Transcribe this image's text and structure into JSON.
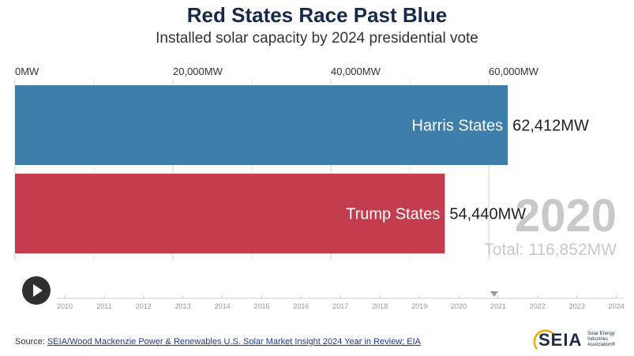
{
  "chart_data": {
    "type": "bar",
    "orientation": "horizontal",
    "title": "Red States Race Past Blue",
    "subtitle": "Installed solar capacity by 2024 presidential vote",
    "categories": [
      "Harris States",
      "Trump States"
    ],
    "values": [
      62412,
      54440
    ],
    "value_labels": [
      "62,412MW",
      "54,440MW"
    ],
    "colors": [
      "#3e7eaa",
      "#c43d4f"
    ],
    "xlim": [
      0,
      70000
    ],
    "x_ticks": [
      0,
      20000,
      40000,
      60000
    ],
    "x_tick_labels": [
      "0MW",
      "20,000MW",
      "40,000MW",
      "60,000MW"
    ],
    "grid": true,
    "current_year": "2020",
    "total_label": "Total: 116,852MW"
  },
  "timeline": {
    "years": [
      "2010",
      "2011",
      "2012",
      "2013",
      "2014",
      "2015",
      "2016",
      "2017",
      "2018",
      "2019",
      "2020",
      "2021",
      "2022",
      "2023",
      "2024"
    ],
    "marker_year": 2020.9
  },
  "controls": {
    "play_icon": "play-icon"
  },
  "footer": {
    "source_prefix": "Source: ",
    "source_link": "SEIA/Wood Mackenzie Power & Renewables U.S. Solar Market Insight 2024 Year in Review; EIA",
    "logo_text": "SEIA",
    "logo_subtext": "Solar Energy Industries Association®",
    "logo_accent": "#f2a900"
  }
}
